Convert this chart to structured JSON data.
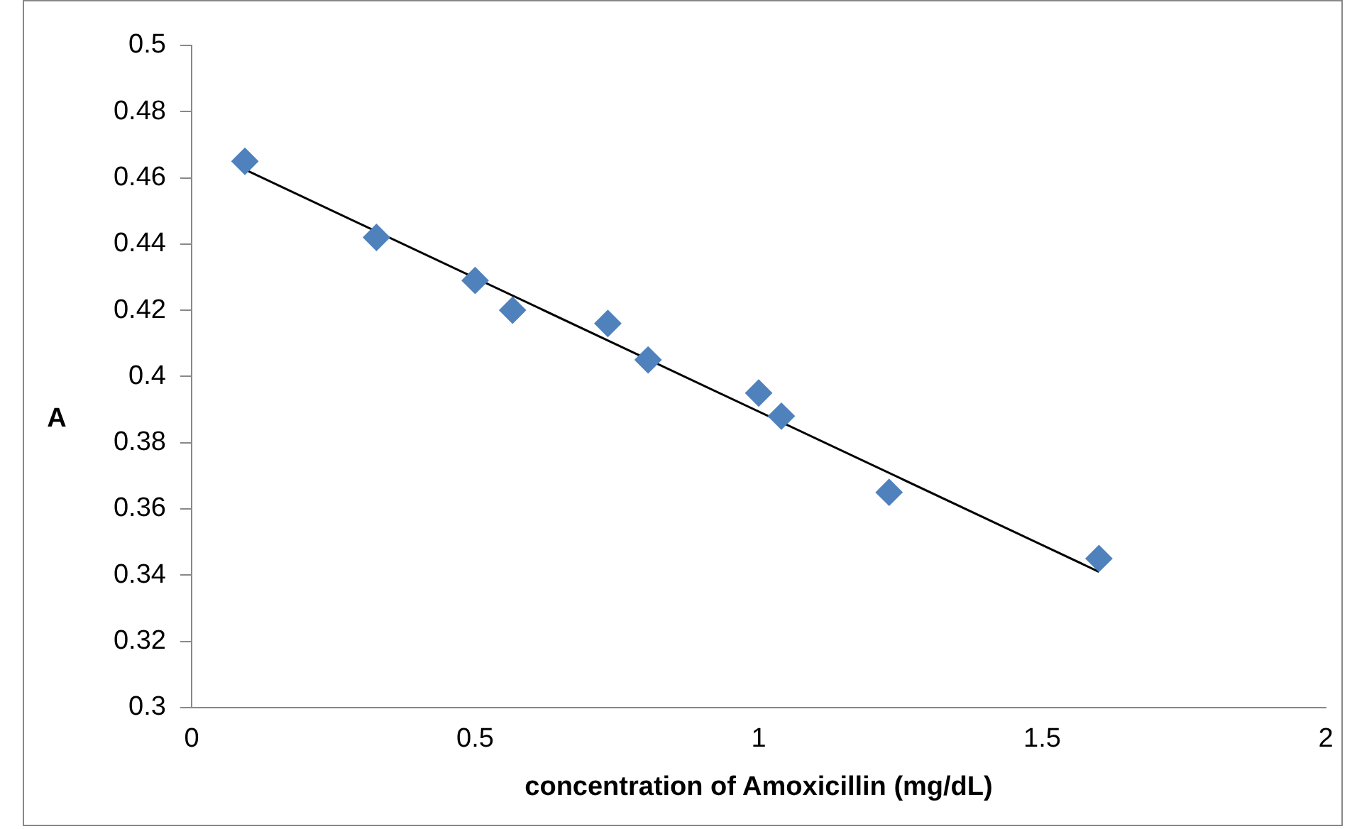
{
  "chart_data": {
    "type": "scatter",
    "xlabel": "concentration of Amoxicillin (mg/dL)",
    "ylabel": "A",
    "xlim": [
      0,
      2
    ],
    "xticks": [
      0,
      0.5,
      1,
      1.5,
      2
    ],
    "ylim": [
      0.3,
      0.5
    ],
    "yticks": [
      0.3,
      0.32,
      0.34,
      0.36,
      0.38,
      0.4,
      0.42,
      0.44,
      0.46,
      0.48,
      0.5
    ],
    "grid": false,
    "legend": false,
    "marker": "diamond",
    "series": [
      {
        "type": "scatter",
        "color": "#4f81bd",
        "x": [
          0.094,
          0.326,
          0.5,
          0.566,
          0.734,
          0.805,
          1.0,
          1.04,
          1.23,
          1.6
        ],
        "values": [
          0.465,
          0.442,
          0.429,
          0.42,
          0.416,
          0.405,
          0.395,
          0.388,
          0.365,
          0.345
        ]
      },
      {
        "type": "line",
        "color": "#000000",
        "marker": "none",
        "line_style": "solid",
        "x": [
          0.094,
          1.6
        ],
        "values": [
          0.4625,
          0.341
        ]
      }
    ]
  }
}
